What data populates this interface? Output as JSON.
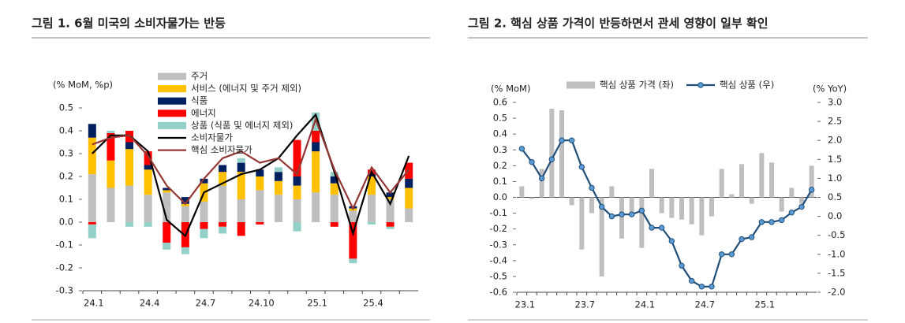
{
  "chart_data": [
    {
      "type": "stacked-bar-line",
      "title": "그림 1. 6월 미국의 소비자물가는 반등",
      "y_label": "(% MoM, %p)",
      "categories": [
        "24.1",
        null,
        null,
        "24.4",
        null,
        null,
        "24.7",
        null,
        null,
        "24.10",
        null,
        null,
        "25.1",
        null,
        null,
        "25.4",
        null,
        null
      ],
      "ylim": [
        -0.3,
        0.5
      ],
      "yticks": [
        0.5,
        0.4,
        0.3,
        0.2,
        0.1,
        {
          "value": 0,
          "label": "0.0"
        },
        -0.1,
        -0.2,
        -0.3
      ],
      "series": [
        {
          "name": "주거",
          "type": "bar",
          "color": "#bfbfbf",
          "values": [
            0.21,
            0.15,
            0.16,
            0.12,
            0.13,
            0.07,
            0.09,
            0.16,
            0.1,
            0.14,
            0.12,
            0.1,
            0.13,
            0.12,
            0.05,
            0.12,
            0.1,
            0.06
          ]
        },
        {
          "name": "서비스 (에너지 및 주거 제외)",
          "type": "bar",
          "color": "#ffc000",
          "values": [
            0.16,
            0.12,
            0.16,
            0.11,
            0.01,
            0.01,
            0.08,
            0.06,
            0.12,
            0.06,
            0.06,
            0.06,
            0.18,
            0.05,
            0.01,
            0.08,
            0.01,
            0.09
          ]
        },
        {
          "name": "식품",
          "type": "bar",
          "color": "#002060",
          "values": [
            0.06,
            0.0,
            0.03,
            0.02,
            0.01,
            0.03,
            0.02,
            0.03,
            0.04,
            0.03,
            0.04,
            0.04,
            0.04,
            0.03,
            0.01,
            0.01,
            0.02,
            0.04
          ]
        },
        {
          "name": "에너지",
          "type": "bar",
          "color": "#ff0000",
          "values": [
            -0.01,
            0.12,
            0.05,
            0.06,
            -0.09,
            -0.11,
            -0.03,
            -0.02,
            -0.06,
            -0.01,
            0.0,
            0.16,
            0.05,
            -0.02,
            -0.16,
            0.02,
            -0.02,
            0.07
          ]
        },
        {
          "name": "상품 (식품 및 에너지 제외)",
          "type": "bar",
          "color": "#92d0c8",
          "values": [
            -0.06,
            0.01,
            -0.02,
            -0.02,
            -0.03,
            -0.03,
            -0.04,
            -0.03,
            0.02,
            0.0,
            0.02,
            -0.04,
            0.08,
            0.02,
            -0.02,
            -0.01,
            -0.01,
            0.0
          ]
        },
        {
          "name": "소비자물가",
          "type": "line",
          "color": "#000000",
          "values": [
            0.3,
            0.38,
            0.38,
            0.31,
            0.01,
            -0.06,
            0.13,
            0.17,
            0.21,
            0.23,
            0.28,
            0.38,
            0.47,
            0.22,
            -0.05,
            0.22,
            0.08,
            0.29
          ]
        },
        {
          "name": "핵심 소비자물가",
          "type": "line",
          "color": "#943634",
          "values": [
            0.34,
            0.37,
            0.38,
            0.29,
            0.16,
            0.08,
            0.19,
            0.28,
            0.31,
            0.26,
            0.28,
            0.21,
            0.45,
            0.23,
            0.06,
            0.24,
            0.13,
            0.23
          ]
        }
      ]
    },
    {
      "type": "bar-line",
      "title": "그림 2. 핵심 상품 가격이 반등하면서 관세 영향이 일부 확인",
      "y_label": "(% MoM)",
      "y2_label": "(% YoY)",
      "zero_line": true,
      "categories": [
        "23.1",
        null,
        null,
        null,
        null,
        null,
        "23.7",
        null,
        null,
        null,
        null,
        null,
        "24.1",
        null,
        null,
        null,
        null,
        null,
        "24.7",
        null,
        null,
        null,
        null,
        null,
        "25.1",
        null,
        null,
        null,
        null,
        null
      ],
      "ylim": [
        -0.6,
        0.6
      ],
      "yticks": [
        0.6,
        0.5,
        0.4,
        0.3,
        0.2,
        0.1,
        {
          "value": 0,
          "label": "0.0"
        },
        -0.1,
        -0.2,
        -0.3,
        -0.4,
        -0.5,
        -0.6
      ],
      "y2lim": [
        -2,
        3
      ],
      "y2ticks": [
        {
          "value": 3,
          "label": "3.0"
        },
        2.5,
        {
          "value": 2,
          "label": "2.0"
        },
        1.5,
        {
          "value": 1,
          "label": "1.0"
        },
        0.5,
        {
          "value": 0,
          "label": "0.0"
        },
        -0.5,
        {
          "value": -1,
          "label": "-1.0"
        },
        -1.5,
        {
          "value": -2,
          "label": "-2.0"
        }
      ],
      "series": [
        {
          "name": "핵심 상품 가격 (좌)",
          "type": "bar",
          "color": "#bfbfbf",
          "values": [
            0.07,
            -0.01,
            0.18,
            0.56,
            0.55,
            -0.05,
            -0.33,
            -0.1,
            -0.5,
            0.07,
            -0.26,
            -0.1,
            -0.32,
            0.18,
            -0.1,
            -0.13,
            -0.14,
            -0.17,
            -0.24,
            -0.12,
            0.18,
            0.02,
            0.21,
            -0.04,
            0.28,
            0.22,
            -0.09,
            0.06,
            -0.04,
            0.2
          ]
        },
        {
          "name": "핵심 상품 (우)",
          "type": "line",
          "axis": "y2",
          "color": "#1f4e79",
          "marker_color": "#5b9bd5",
          "values": [
            1.78,
            1.43,
            1.0,
            1.5,
            2.0,
            2.0,
            1.3,
            0.75,
            0.25,
            0.0,
            0.05,
            0.05,
            0.15,
            -0.3,
            -0.3,
            -0.65,
            -1.3,
            -1.7,
            -1.85,
            -1.85,
            -1.0,
            -1.0,
            -0.6,
            -0.55,
            -0.15,
            -0.15,
            -0.1,
            0.1,
            0.25,
            0.7
          ]
        }
      ]
    }
  ]
}
